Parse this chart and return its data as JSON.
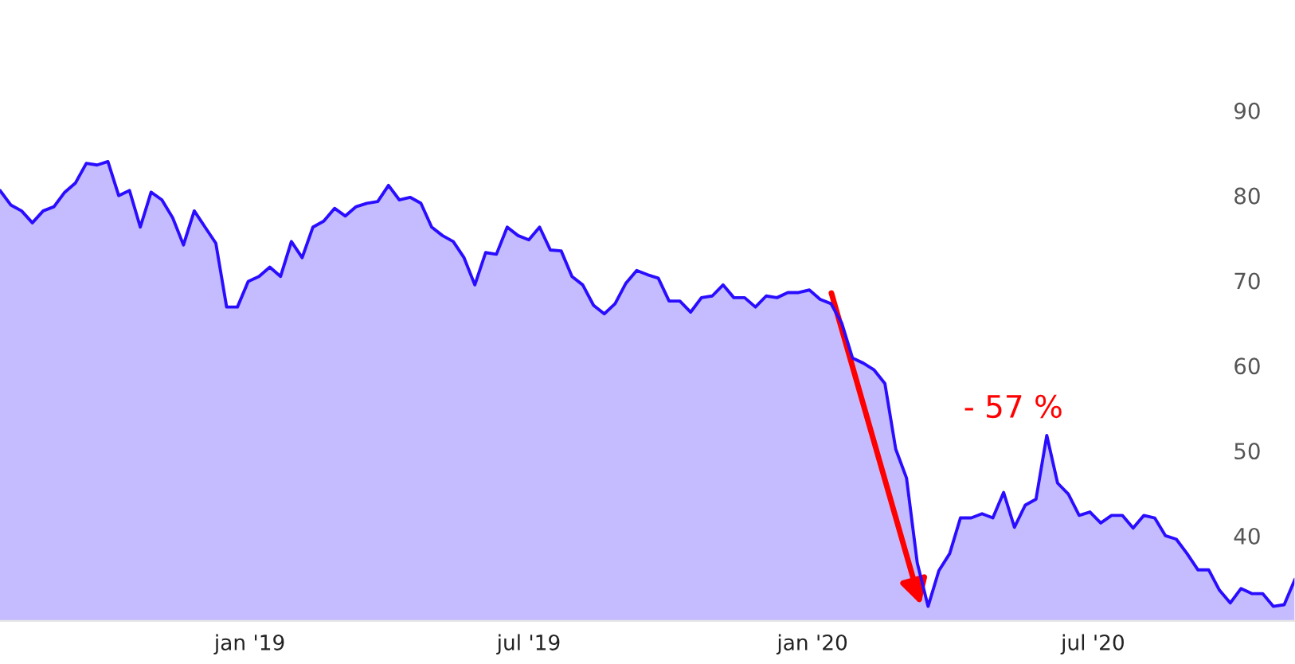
{
  "chart_data": {
    "type": "area",
    "x": [
      "2018-07-23",
      "2018-07-30",
      "2018-08-06",
      "2018-08-13",
      "2018-08-20",
      "2018-08-27",
      "2018-09-03",
      "2018-09-10",
      "2018-09-17",
      "2018-09-24",
      "2018-10-01",
      "2018-10-08",
      "2018-10-15",
      "2018-10-22",
      "2018-10-29",
      "2018-11-05",
      "2018-11-12",
      "2018-11-19",
      "2018-11-26",
      "2018-12-03",
      "2018-12-10",
      "2018-12-17",
      "2018-12-24",
      "2018-12-31",
      "2019-01-07",
      "2019-01-14",
      "2019-01-21",
      "2019-01-28",
      "2019-02-04",
      "2019-02-11",
      "2019-02-18",
      "2019-02-25",
      "2019-03-04",
      "2019-03-11",
      "2019-03-18",
      "2019-03-25",
      "2019-04-01",
      "2019-04-08",
      "2019-04-15",
      "2019-04-22",
      "2019-04-29",
      "2019-05-06",
      "2019-05-13",
      "2019-05-20",
      "2019-05-27",
      "2019-06-03",
      "2019-06-10",
      "2019-06-17",
      "2019-06-24",
      "2019-07-01",
      "2019-07-08",
      "2019-07-15",
      "2019-07-22",
      "2019-07-29",
      "2019-08-05",
      "2019-08-12",
      "2019-08-19",
      "2019-08-26",
      "2019-09-02",
      "2019-09-09",
      "2019-09-16",
      "2019-09-23",
      "2019-09-30",
      "2019-10-07",
      "2019-10-14",
      "2019-10-21",
      "2019-10-28",
      "2019-11-04",
      "2019-11-11",
      "2019-11-18",
      "2019-11-25",
      "2019-12-02",
      "2019-12-09",
      "2019-12-16",
      "2019-12-23",
      "2019-12-30",
      "2020-01-06",
      "2020-01-13",
      "2020-01-20",
      "2020-01-27",
      "2020-02-03",
      "2020-02-10",
      "2020-02-17",
      "2020-02-24",
      "2020-03-02",
      "2020-03-09",
      "2020-03-16",
      "2020-03-23",
      "2020-03-30",
      "2020-04-06",
      "2020-04-13",
      "2020-04-20",
      "2020-04-27",
      "2020-05-04",
      "2020-05-11",
      "2020-05-18",
      "2020-05-25",
      "2020-06-01",
      "2020-06-08",
      "2020-06-15",
      "2020-06-22",
      "2020-06-29",
      "2020-07-06",
      "2020-07-13",
      "2020-07-20",
      "2020-07-27",
      "2020-08-03",
      "2020-08-10",
      "2020-08-17",
      "2020-08-24",
      "2020-08-31",
      "2020-09-07",
      "2020-09-14",
      "2020-09-21",
      "2020-09-28",
      "2020-10-05",
      "2020-10-12",
      "2020-10-19",
      "2020-10-26",
      "2020-11-02",
      "2020-11-09"
    ],
    "series": [
      {
        "color": "#2a0dff",
        "values": [
          80.6,
          78.9,
          78.2,
          76.8,
          78.2,
          78.7,
          80.4,
          81.5,
          83.8,
          83.6,
          84.0,
          80.0,
          80.6,
          76.3,
          80.4,
          79.5,
          77.4,
          74.2,
          78.2,
          76.3,
          74.4,
          66.9,
          66.9,
          69.9,
          70.5,
          71.6,
          70.5,
          74.6,
          72.7,
          76.3,
          77.0,
          78.5,
          77.6,
          78.7,
          79.1,
          79.3,
          81.2,
          79.5,
          79.8,
          79.1,
          76.3,
          75.3,
          74.6,
          72.7,
          69.5,
          73.3,
          73.1,
          76.3,
          75.3,
          74.8,
          76.3,
          73.6,
          73.5,
          70.5,
          69.5,
          67.1,
          66.1,
          67.3,
          69.7,
          71.2,
          70.7,
          70.3,
          67.6,
          67.6,
          66.3,
          68.0,
          68.2,
          69.5,
          68.0,
          68.0,
          66.9,
          68.2,
          68.0,
          68.6,
          68.6,
          68.9,
          67.8,
          67.3,
          65.0,
          60.9,
          60.3,
          59.5,
          57.9,
          50.2,
          46.8,
          36.8,
          31.7,
          35.9,
          37.9,
          42.1,
          42.1,
          42.6,
          42.1,
          45.1,
          41.0,
          43.6,
          44.3,
          51.8,
          46.2,
          44.9,
          42.4,
          42.8,
          41.5,
          42.4,
          42.4,
          40.9,
          42.4,
          42.1,
          40.0,
          39.6,
          37.9,
          36.0,
          36.0,
          33.6,
          32.1,
          33.8,
          33.2,
          33.2,
          31.7,
          31.9,
          34.9
        ]
      }
    ],
    "xlim": [
      "2018-07-23",
      "2020-11-09"
    ],
    "xticks": [
      {
        "value": "2019-01-01",
        "label": "jan '19"
      },
      {
        "value": "2019-07-01",
        "label": "jul '19"
      },
      {
        "value": "2020-01-01",
        "label": "jan '20"
      },
      {
        "value": "2020-07-01",
        "label": "jul '20"
      }
    ],
    "ylim": [
      30,
      103
    ],
    "yticks": [
      40,
      50,
      60,
      70,
      80,
      90
    ],
    "annotations": [
      "- 57 %"
    ],
    "grid": false,
    "legend": false
  }
}
